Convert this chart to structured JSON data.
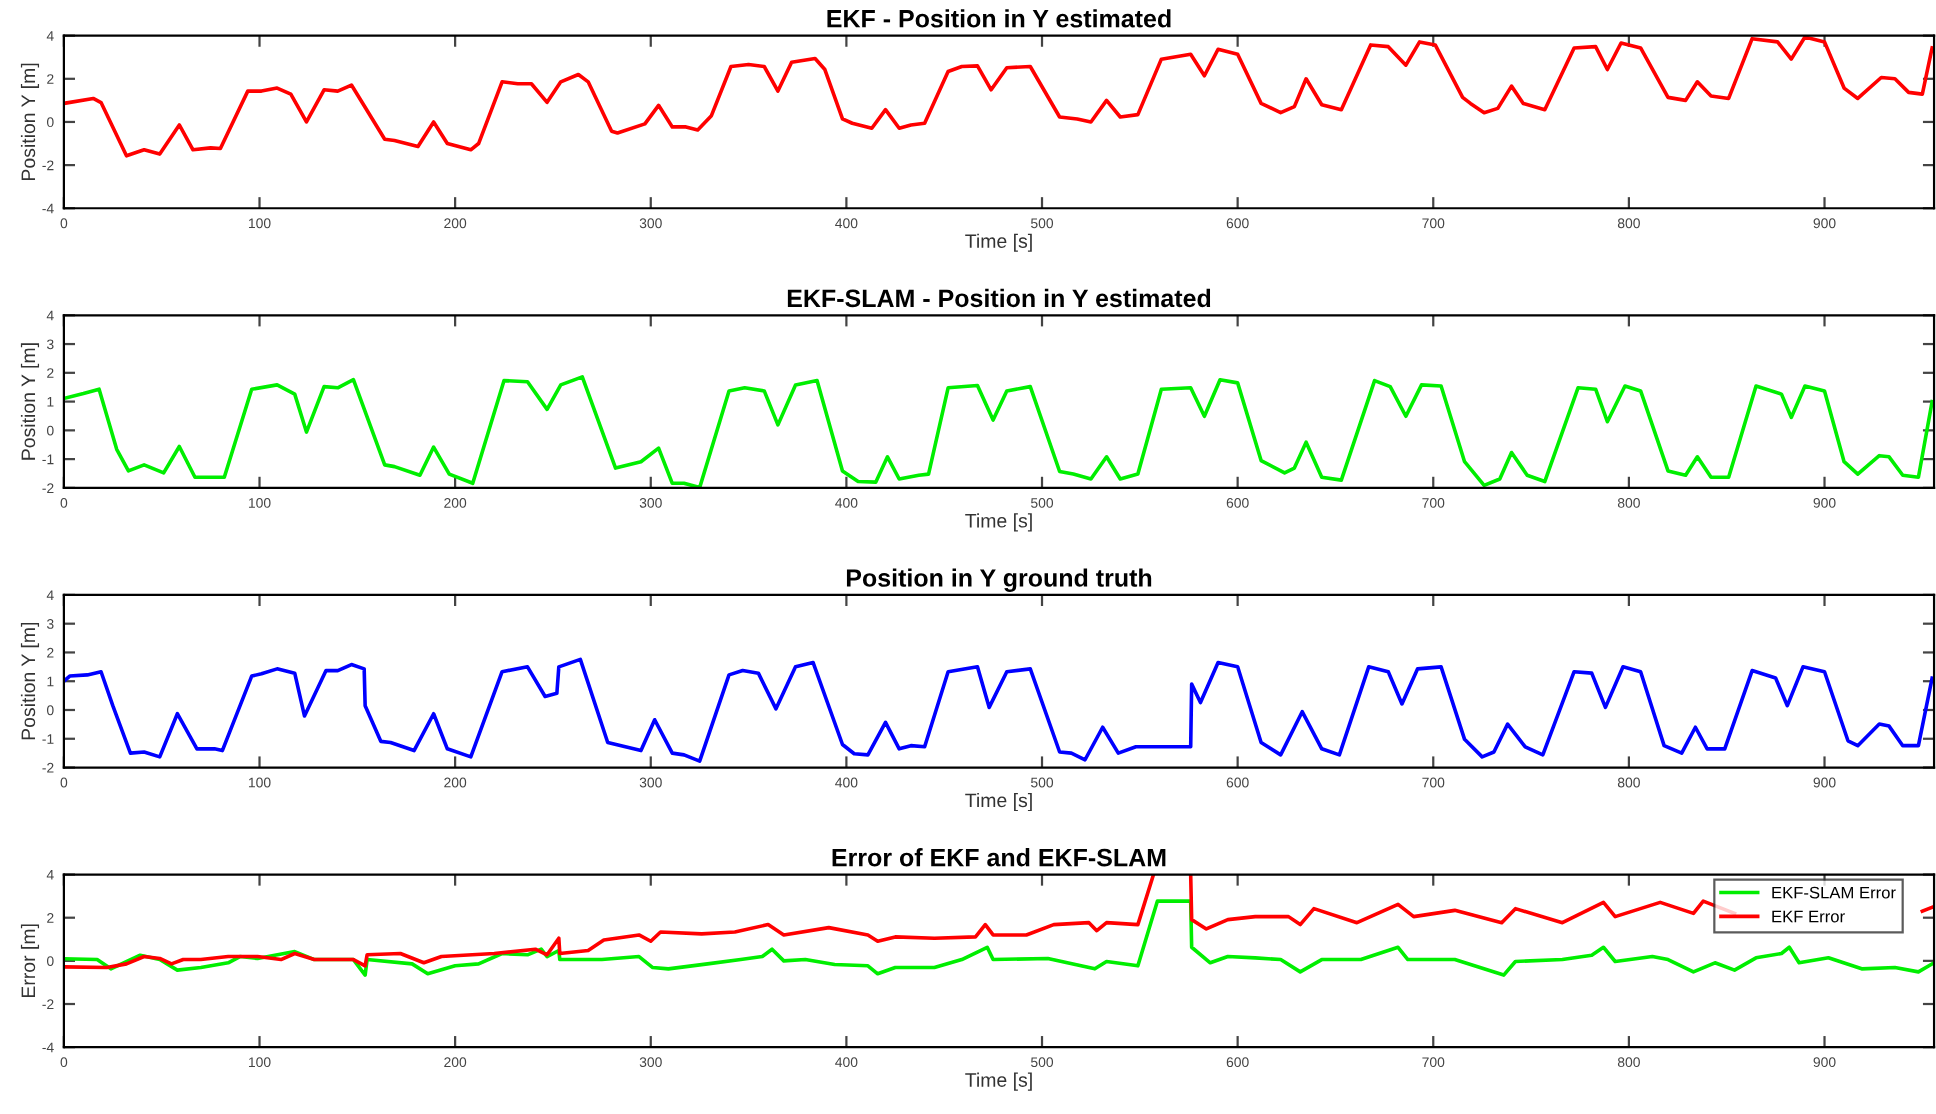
{
  "chart_data": [
    {
      "type": "line",
      "title": "EKF - Position in Y estimated",
      "xlabel": "Time [s]",
      "ylabel": "Position Y [m]",
      "xlim": [
        0,
        956
      ],
      "xticks": [
        0,
        100,
        200,
        300,
        400,
        500,
        600,
        700,
        800,
        900
      ],
      "ylim": [
        -4,
        4
      ],
      "yticks": [
        -4,
        -2,
        0,
        2,
        4
      ],
      "grid": false,
      "legend": false,
      "series": [
        {
          "color": "#ff0000",
          "x": [
            0,
            15,
            19,
            32,
            41,
            49,
            59,
            66,
            75,
            80,
            94,
            101,
            109,
            116,
            124,
            133,
            140,
            147,
            164,
            169,
            181,
            189,
            196,
            208,
            212,
            224,
            232,
            239,
            247,
            254,
            263,
            268,
            280,
            283,
            297,
            304,
            311,
            318,
            324,
            331,
            341,
            350,
            358,
            365,
            372,
            384,
            389,
            398,
            403,
            413,
            420,
            427,
            433,
            440,
            452,
            459,
            467,
            474,
            482,
            494,
            509,
            518,
            525,
            533,
            540,
            549,
            561,
            576,
            583,
            590,
            600,
            612,
            622,
            629,
            635,
            643,
            653,
            668,
            677,
            686,
            693,
            701,
            715,
            719,
            726,
            733,
            740,
            746,
            757,
            772,
            783,
            789,
            796,
            806,
            820,
            829,
            835,
            842,
            851,
            863,
            876,
            883,
            890,
            900,
            910,
            917,
            929,
            936,
            943,
            950,
            955
          ],
          "values": [
            0.86,
            1.09,
            0.9,
            -1.57,
            -1.29,
            -1.49,
            -0.14,
            -1.29,
            -1.2,
            -1.23,
            1.43,
            1.43,
            1.57,
            1.29,
            0,
            1.49,
            1.43,
            1.71,
            -0.8,
            -0.86,
            -1.14,
            0,
            -1,
            -1.29,
            -1,
            1.86,
            1.77,
            1.77,
            0.91,
            1.86,
            2.2,
            1.86,
            -0.43,
            -0.51,
            -0.09,
            0.77,
            -0.23,
            -0.23,
            -0.37,
            0.29,
            2.57,
            2.66,
            2.57,
            1.43,
            2.77,
            2.94,
            2.43,
            0.14,
            -0.06,
            -0.29,
            0.57,
            -0.29,
            -0.14,
            -0.06,
            2.34,
            2.57,
            2.6,
            1.49,
            2.51,
            2.57,
            0.23,
            0.14,
            0,
            1,
            0.23,
            0.34,
            2.91,
            3.14,
            2.14,
            3.37,
            3.14,
            0.86,
            0.43,
            0.71,
            2,
            0.8,
            0.57,
            3.57,
            3.49,
            2.63,
            3.71,
            3.57,
            1.14,
            0.86,
            0.43,
            0.63,
            1.66,
            0.86,
            0.57,
            3.43,
            3.49,
            2.43,
            3.66,
            3.43,
            1.14,
            1,
            1.86,
            1.2,
            1.09,
            3.86,
            3.71,
            2.91,
            3.94,
            3.71,
            1.57,
            1.09,
            2.06,
            2,
            1.37,
            1.29,
            3.43
          ]
        }
      ]
    },
    {
      "type": "line",
      "title": "EKF-SLAM - Position in Y estimated",
      "xlabel": "Time [s]",
      "ylabel": "Position Y [m]",
      "xlim": [
        0,
        956
      ],
      "xticks": [
        0,
        100,
        200,
        300,
        400,
        500,
        600,
        700,
        800,
        900
      ],
      "ylim": [
        -2,
        4
      ],
      "yticks": [
        -2,
        -1,
        0,
        1,
        2,
        3,
        4
      ],
      "grid": false,
      "legend": false,
      "series": [
        {
          "color": "#00ee00",
          "x": [
            0,
            10,
            18,
            27,
            33,
            41,
            51,
            59,
            67,
            77,
            82,
            96,
            109,
            118,
            124,
            133,
            140,
            148,
            164,
            169,
            182,
            189,
            197,
            209,
            225,
            237,
            247,
            254,
            265,
            282,
            295,
            304,
            311,
            317,
            325,
            340,
            348,
            358,
            365,
            374,
            385,
            398,
            406,
            415,
            421,
            427,
            437,
            442,
            452,
            467,
            475,
            482,
            494,
            509,
            516,
            525,
            533,
            540,
            549,
            561,
            576,
            583,
            591,
            600,
            612,
            624,
            629,
            635,
            643,
            653,
            670,
            678,
            686,
            694,
            704,
            716,
            726,
            734,
            740,
            748,
            757,
            774,
            783,
            789,
            798,
            806,
            820,
            829,
            835,
            842,
            851,
            865,
            878,
            883,
            890,
            900,
            910,
            917,
            928,
            933,
            940,
            948,
            955
          ],
          "values": [
            1.11,
            1.28,
            1.43,
            -0.66,
            -1.41,
            -1.2,
            -1.48,
            -0.56,
            -1.63,
            -1.63,
            -1.63,
            1.43,
            1.58,
            1.26,
            -0.06,
            1.52,
            1.48,
            1.76,
            -1.2,
            -1.26,
            -1.56,
            -0.58,
            -1.52,
            -1.84,
            1.73,
            1.69,
            0.73,
            1.58,
            1.86,
            -1.31,
            -1.09,
            -0.62,
            -1.84,
            -1.84,
            -1.99,
            1.37,
            1.48,
            1.37,
            0.19,
            1.58,
            1.73,
            -1.41,
            -1.78,
            -1.8,
            -0.92,
            -1.69,
            -1.56,
            -1.52,
            1.48,
            1.56,
            0.36,
            1.37,
            1.52,
            -1.43,
            -1.52,
            -1.69,
            -0.92,
            -1.69,
            -1.52,
            1.43,
            1.48,
            0.49,
            1.76,
            1.65,
            -1.05,
            -1.48,
            -1.31,
            -0.41,
            -1.63,
            -1.73,
            1.73,
            1.52,
            0.49,
            1.58,
            1.54,
            -1.09,
            -1.91,
            -1.69,
            -0.77,
            -1.56,
            -1.78,
            1.48,
            1.43,
            0.3,
            1.54,
            1.37,
            -1.41,
            -1.56,
            -0.92,
            -1.63,
            -1.63,
            1.54,
            1.26,
            0.45,
            1.54,
            1.37,
            -1.09,
            -1.52,
            -0.88,
            -0.92,
            -1.56,
            -1.63,
            1.0
          ]
        }
      ]
    },
    {
      "type": "line",
      "title": "Position in Y ground truth",
      "xlabel": "Time [s]",
      "ylabel": "Position Y [m]",
      "xlim": [
        0,
        956
      ],
      "xticks": [
        0,
        100,
        200,
        300,
        400,
        500,
        600,
        700,
        800,
        900
      ],
      "ylim": [
        -2,
        4
      ],
      "yticks": [
        -2,
        -1,
        0,
        1,
        2,
        3,
        4
      ],
      "grid": false,
      "legend": false,
      "series": [
        {
          "color": "#0000ff",
          "x": [
            0,
            3,
            12,
            19,
            25,
            34,
            41,
            49,
            58,
            68,
            77,
            81,
            96,
            101,
            109,
            118,
            123,
            134,
            140,
            147,
            153.5,
            154,
            162,
            167,
            179,
            189,
            196,
            208,
            224,
            237,
            246,
            252,
            253,
            264,
            278,
            295,
            302,
            311,
            317,
            325,
            340,
            347,
            355,
            364,
            374,
            383,
            398,
            404,
            411,
            420,
            427,
            433,
            440,
            452,
            467,
            473,
            482,
            494,
            509,
            515,
            522,
            531,
            539,
            548,
            576,
            576.5,
            581,
            590,
            600,
            612,
            622,
            633,
            643,
            652,
            667,
            677,
            684,
            692,
            704,
            716,
            725,
            731,
            738,
            747,
            756,
            772,
            781,
            788,
            797,
            806,
            818,
            827,
            834,
            840,
            849,
            863,
            875,
            881,
            889,
            900,
            912,
            917,
            928,
            933,
            940,
            948,
            955
          ],
          "values": [
            1.0,
            1.18,
            1.22,
            1.33,
            0.15,
            -1.5,
            -1.46,
            -1.63,
            -0.13,
            -1.35,
            -1.35,
            -1.41,
            1.18,
            1.26,
            1.43,
            1.28,
            -0.21,
            1.37,
            1.37,
            1.58,
            1.43,
            0.15,
            -1.09,
            -1.13,
            -1.41,
            -0.13,
            -1.35,
            -1.63,
            1.33,
            1.5,
            0.47,
            0.58,
            1.5,
            1.76,
            -1.13,
            -1.41,
            -0.34,
            -1.5,
            -1.56,
            -1.78,
            1.22,
            1.37,
            1.28,
            0.04,
            1.5,
            1.65,
            -1.2,
            -1.52,
            -1.56,
            -0.43,
            -1.35,
            -1.24,
            -1.28,
            1.33,
            1.5,
            0.09,
            1.33,
            1.43,
            -1.46,
            -1.5,
            -1.73,
            -0.6,
            -1.5,
            -1.28,
            -1.28,
            0.9,
            0.26,
            1.65,
            1.5,
            -1.13,
            -1.56,
            -0.06,
            -1.35,
            -1.56,
            1.5,
            1.33,
            0.21,
            1.43,
            1.5,
            -1.02,
            -1.63,
            -1.46,
            -0.49,
            -1.28,
            -1.56,
            1.33,
            1.28,
            0.09,
            1.5,
            1.33,
            -1.24,
            -1.5,
            -0.6,
            -1.35,
            -1.35,
            1.37,
            1.11,
            0.15,
            1.5,
            1.33,
            -1.07,
            -1.24,
            -0.49,
            -0.56,
            -1.24,
            -1.24,
            1.11
          ]
        }
      ]
    },
    {
      "type": "line",
      "title": "Error of EKF and EKF-SLAM",
      "xlabel": "Time [s]",
      "ylabel": "Error [m]",
      "xlim": [
        0,
        956
      ],
      "xticks": [
        0,
        100,
        200,
        300,
        400,
        500,
        600,
        700,
        800,
        900
      ],
      "ylim": [
        -4,
        4
      ],
      "yticks": [
        -4,
        -2,
        0,
        2,
        4
      ],
      "grid": false,
      "legend": "top right",
      "series": [
        {
          "name": "EKF-SLAM Error",
          "color": "#00ee00",
          "x": [
            0,
            17,
            24,
            39,
            49,
            58,
            70,
            84,
            90,
            99,
            118,
            128,
            148,
            154,
            155,
            178,
            186,
            200,
            212,
            224,
            237,
            244,
            247,
            253,
            253.5,
            275,
            294,
            301,
            309,
            329,
            346,
            357,
            362,
            368,
            379,
            394,
            411,
            416,
            425,
            445,
            459,
            472,
            475,
            503,
            527,
            533,
            549,
            559,
            576,
            576.5,
            586,
            595,
            609,
            622,
            632,
            643,
            663,
            682,
            687,
            711,
            736,
            742,
            766,
            781,
            787,
            793,
            812,
            820,
            833,
            844,
            854,
            865,
            878,
            882,
            887,
            902,
            919,
            936,
            948,
            955
          ],
          "values": [
            0.1,
            0.06,
            -0.37,
            0.26,
            0.06,
            -0.43,
            -0.31,
            -0.09,
            0.2,
            0.11,
            0.43,
            0.06,
            0.06,
            -0.66,
            0.06,
            -0.14,
            -0.6,
            -0.23,
            -0.14,
            0.34,
            0.28,
            0.54,
            0.2,
            0.48,
            0.06,
            0.06,
            0.2,
            -0.31,
            -0.37,
            -0.14,
            0.06,
            0.2,
            0.54,
            0,
            0.06,
            -0.17,
            -0.23,
            -0.6,
            -0.31,
            -0.31,
            0.06,
            0.63,
            0.06,
            0.11,
            -0.37,
            -0.03,
            -0.23,
            2.77,
            2.77,
            0.63,
            -0.09,
            0.2,
            0.14,
            0.06,
            -0.51,
            0.06,
            0.06,
            0.63,
            0.06,
            0.06,
            -0.66,
            -0.03,
            0.06,
            0.26,
            0.63,
            -0.03,
            0.2,
            0.06,
            -0.51,
            -0.09,
            -0.43,
            0.14,
            0.34,
            0.63,
            -0.09,
            0.14,
            -0.37,
            -0.31,
            -0.51,
            -0.14
          ]
        },
        {
          "name": "EKF Error",
          "color": "#ff0000",
          "x": [
            0,
            22,
            32,
            41,
            49,
            55,
            61,
            70,
            84,
            99,
            111,
            118,
            128,
            148,
            154,
            155,
            172,
            184,
            193,
            220,
            241,
            247,
            253,
            253.5,
            268,
            276,
            294,
            300,
            305,
            326,
            343,
            360,
            368,
            391,
            411,
            416,
            425,
            445,
            466,
            471,
            475,
            492,
            506,
            524,
            528,
            533,
            549,
            557,
            567,
            576,
            576.5,
            584,
            595,
            609,
            626,
            632,
            639,
            661,
            682,
            690,
            711,
            735,
            742,
            766,
            787,
            793,
            816,
            833,
            838,
            854,
            868,
            882,
            889,
            902,
            916,
            936,
            950,
            955
          ],
          "values": [
            -0.28,
            -0.31,
            -0.14,
            0.2,
            0.11,
            -0.14,
            0.06,
            0.06,
            0.2,
            0.2,
            0.06,
            0.34,
            0.06,
            0.06,
            -0.23,
            0.28,
            0.34,
            -0.09,
            0.2,
            0.34,
            0.54,
            0.28,
            1.05,
            0.34,
            0.48,
            0.97,
            1.2,
            0.91,
            1.34,
            1.25,
            1.34,
            1.68,
            1.2,
            1.54,
            1.2,
            0.91,
            1.11,
            1.05,
            1.11,
            1.68,
            1.2,
            1.2,
            1.68,
            1.77,
            1.4,
            1.77,
            1.68,
            4,
            null,
            4,
            1.91,
            1.48,
            1.91,
            2.05,
            2.05,
            1.68,
            2.42,
            1.77,
            2.62,
            2.05,
            2.34,
            1.77,
            2.42,
            1.77,
            2.71,
            2.05,
            2.71,
            2.2,
            2.77,
            2.2,
            null,
            null,
            null,
            null,
            null,
            null,
            2.3,
            2.48
          ]
        }
      ]
    }
  ]
}
